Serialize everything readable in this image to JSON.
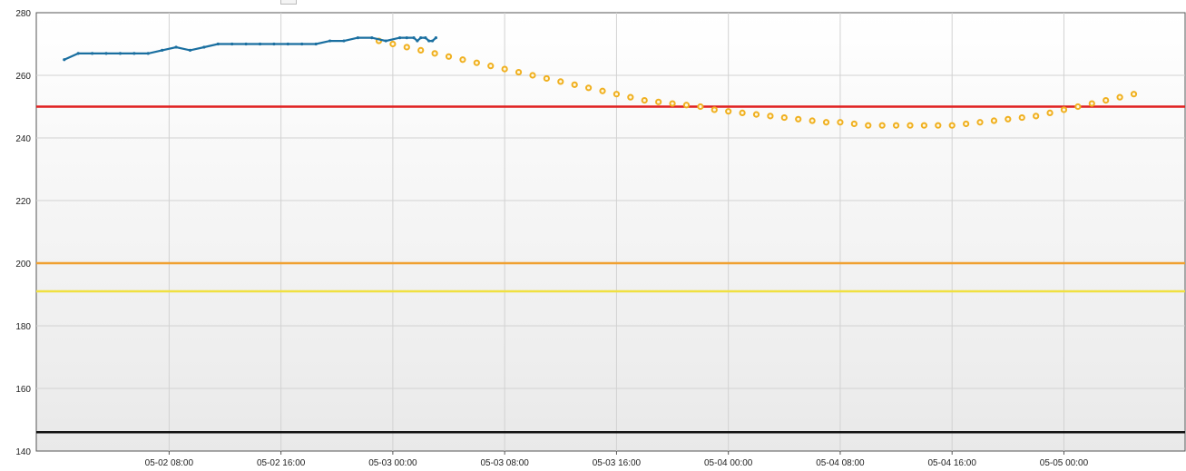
{
  "chart_data": {
    "type": "line",
    "title": "",
    "xlabel": "",
    "ylabel": "",
    "ylim": [
      140,
      280
    ],
    "yticks": [
      140,
      160,
      180,
      200,
      220,
      240,
      260,
      280
    ],
    "xlim": [
      "2025-05-01 22:30",
      "2025-05-05 08:40"
    ],
    "xticks": [
      "2025-05-02 08:00",
      "2025-05-02 16:00",
      "2025-05-03 00:00",
      "2025-05-03 08:00",
      "2025-05-03 16:00",
      "2025-05-04 00:00",
      "2025-05-04 08:00",
      "2025-05-04 16:00",
      "2025-05-05 00:00"
    ],
    "xtick_labels": [
      "05-02 08:00",
      "05-02 16:00",
      "05-03 00:00",
      "05-03 08:00",
      "05-03 16:00",
      "05-04 00:00",
      "05-04 08:00",
      "05-04 16:00",
      "05-05 00:00"
    ],
    "grid": true,
    "thresholds": [
      {
        "value": 250,
        "color": "#e02020"
      },
      {
        "value": 200,
        "color": "#f0a030"
      },
      {
        "value": 191,
        "color": "#f0e040"
      },
      {
        "value": 146,
        "color": "#111111"
      }
    ],
    "series": [
      {
        "style": "solid-line",
        "color": "#1a6fa0",
        "points": [
          [
            "2025-05-02 00:30",
            265
          ],
          [
            "2025-05-02 01:30",
            267
          ],
          [
            "2025-05-02 02:30",
            267
          ],
          [
            "2025-05-02 03:30",
            267
          ],
          [
            "2025-05-02 04:30",
            267
          ],
          [
            "2025-05-02 05:30",
            267
          ],
          [
            "2025-05-02 06:30",
            267
          ],
          [
            "2025-05-02 07:30",
            268
          ],
          [
            "2025-05-02 08:30",
            269
          ],
          [
            "2025-05-02 09:30",
            268
          ],
          [
            "2025-05-02 10:30",
            269
          ],
          [
            "2025-05-02 11:30",
            270
          ],
          [
            "2025-05-02 12:30",
            270
          ],
          [
            "2025-05-02 13:30",
            270
          ],
          [
            "2025-05-02 14:30",
            270
          ],
          [
            "2025-05-02 15:30",
            270
          ],
          [
            "2025-05-02 16:30",
            270
          ],
          [
            "2025-05-02 17:30",
            270
          ],
          [
            "2025-05-02 18:30",
            270
          ],
          [
            "2025-05-02 19:30",
            271
          ],
          [
            "2025-05-02 20:30",
            271
          ],
          [
            "2025-05-02 21:30",
            272
          ],
          [
            "2025-05-02 22:30",
            272
          ],
          [
            "2025-05-02 23:30",
            271
          ],
          [
            "2025-05-03 00:30",
            272
          ],
          [
            "2025-05-03 01:00",
            272
          ],
          [
            "2025-05-03 01:30",
            272
          ],
          [
            "2025-05-03 01:45",
            271
          ],
          [
            "2025-05-03 02:00",
            272
          ],
          [
            "2025-05-03 02:20",
            272
          ],
          [
            "2025-05-03 02:35",
            271
          ],
          [
            "2025-05-03 02:50",
            271
          ],
          [
            "2025-05-03 03:05",
            272
          ]
        ]
      },
      {
        "style": "dots",
        "color": "#f0b020",
        "points": [
          [
            "2025-05-02 23:00",
            271
          ],
          [
            "2025-05-03 00:00",
            270
          ],
          [
            "2025-05-03 01:00",
            269
          ],
          [
            "2025-05-03 02:00",
            268
          ],
          [
            "2025-05-03 03:00",
            267
          ],
          [
            "2025-05-03 04:00",
            266
          ],
          [
            "2025-05-03 05:00",
            265
          ],
          [
            "2025-05-03 06:00",
            264
          ],
          [
            "2025-05-03 07:00",
            263
          ],
          [
            "2025-05-03 08:00",
            262
          ],
          [
            "2025-05-03 09:00",
            261
          ],
          [
            "2025-05-03 10:00",
            260
          ],
          [
            "2025-05-03 11:00",
            259
          ],
          [
            "2025-05-03 12:00",
            258
          ],
          [
            "2025-05-03 13:00",
            257
          ],
          [
            "2025-05-03 14:00",
            256
          ],
          [
            "2025-05-03 15:00",
            255
          ],
          [
            "2025-05-03 16:00",
            254
          ],
          [
            "2025-05-03 17:00",
            253
          ],
          [
            "2025-05-03 18:00",
            252
          ],
          [
            "2025-05-03 19:00",
            251.5
          ],
          [
            "2025-05-03 20:00",
            251
          ],
          [
            "2025-05-03 21:00",
            250.5
          ],
          [
            "2025-05-03 22:00",
            250
          ],
          [
            "2025-05-03 23:00",
            249
          ],
          [
            "2025-05-04 00:00",
            248.5
          ],
          [
            "2025-05-04 01:00",
            248
          ],
          [
            "2025-05-04 02:00",
            247.5
          ],
          [
            "2025-05-04 03:00",
            247
          ],
          [
            "2025-05-04 04:00",
            246.5
          ],
          [
            "2025-05-04 05:00",
            246
          ],
          [
            "2025-05-04 06:00",
            245.5
          ],
          [
            "2025-05-04 07:00",
            245
          ],
          [
            "2025-05-04 08:00",
            245
          ],
          [
            "2025-05-04 09:00",
            244.5
          ],
          [
            "2025-05-04 10:00",
            244
          ],
          [
            "2025-05-04 11:00",
            244
          ],
          [
            "2025-05-04 12:00",
            244
          ],
          [
            "2025-05-04 13:00",
            244
          ],
          [
            "2025-05-04 14:00",
            244
          ],
          [
            "2025-05-04 15:00",
            244
          ],
          [
            "2025-05-04 16:00",
            244
          ],
          [
            "2025-05-04 17:00",
            244.5
          ],
          [
            "2025-05-04 18:00",
            245
          ],
          [
            "2025-05-04 19:00",
            245.5
          ],
          [
            "2025-05-04 20:00",
            246
          ],
          [
            "2025-05-04 21:00",
            246.5
          ],
          [
            "2025-05-04 22:00",
            247
          ],
          [
            "2025-05-04 23:00",
            248
          ],
          [
            "2025-05-05 00:00",
            249
          ],
          [
            "2025-05-05 01:00",
            250
          ],
          [
            "2025-05-05 02:00",
            251
          ],
          [
            "2025-05-05 03:00",
            252
          ],
          [
            "2025-05-05 04:00",
            253
          ],
          [
            "2025-05-05 05:00",
            254
          ]
        ]
      }
    ]
  }
}
